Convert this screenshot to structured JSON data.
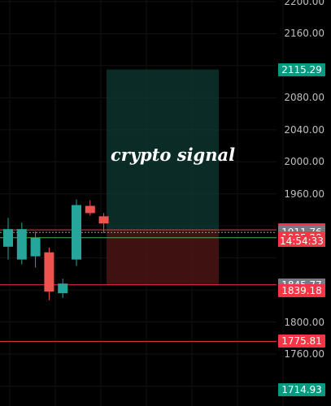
{
  "chart_data": {
    "type": "candlestick",
    "watermark": "crypto signal",
    "y_axis": {
      "ticks": [
        "2200.00",
        "2160.00",
        "2080.00",
        "2040.00",
        "2000.00",
        "1960.00",
        "1800.00",
        "1760.00"
      ]
    },
    "candles": [
      {
        "open": 1894,
        "high": 1930,
        "low": 1878,
        "close": 1916,
        "color": "#26a69a"
      },
      {
        "open": 1916,
        "high": 1924,
        "low": 1872,
        "close": 1878,
        "color": "#26a69a"
      },
      {
        "open": 1905,
        "high": 1913,
        "low": 1868,
        "close": 1882,
        "color": "#26a69a"
      },
      {
        "open": 1887,
        "high": 1893,
        "low": 1827,
        "close": 1838,
        "color": "#ef5350"
      },
      {
        "open": 1848,
        "high": 1854,
        "low": 1830,
        "close": 1836,
        "color": "#26a69a"
      },
      {
        "open": 1878,
        "high": 1953,
        "low": 1870,
        "close": 1946,
        "color": "#26a69a"
      },
      {
        "open": 1945,
        "high": 1952,
        "low": 1933,
        "close": 1936,
        "color": "#ef5350"
      },
      {
        "open": 1932,
        "high": 1936,
        "low": 1911,
        "close": 1923,
        "color": "#ef5350"
      }
    ],
    "position_box": {
      "target": 2115.29,
      "entry": 1914.94,
      "stop": 1846.43
    },
    "lines": [
      {
        "price": 1914.94,
        "color": "#f23645"
      },
      {
        "price": 1911.76,
        "color": "#9e9e9e"
      },
      {
        "price": 1905.29,
        "color": "#4caf50"
      },
      {
        "price": 1846.43,
        "color": "#f23645"
      },
      {
        "price": 1775.81,
        "color": "#f23645"
      }
    ]
  },
  "price_tags": [
    {
      "price": 2115.29,
      "label": "2115.29",
      "bg": "#089981",
      "fg": "#ffffff"
    },
    {
      "price": 1914.94,
      "label": "1914.94",
      "bg": "#f23645",
      "fg": "#ffffff"
    },
    {
      "price": 1911.76,
      "label": "1911.76",
      "bg": "#787b86",
      "fg": "#ffffff"
    },
    {
      "price": 1905.29,
      "label": "1905.29",
      "bg": "#f23645",
      "fg": "#ffffff"
    },
    {
      "price": 1846.43,
      "label": "1846.43",
      "bg": "#f23645",
      "fg": "#ffffff"
    },
    {
      "price": 1845.77,
      "label": "1845.77",
      "bg": "#787b86",
      "fg": "#ffffff"
    },
    {
      "price": 1839.18,
      "label": "1839.18",
      "bg": "#f23645",
      "fg": "#ffffff"
    },
    {
      "price": 1775.81,
      "label": "1775.81",
      "bg": "#f23645",
      "fg": "#ffffff"
    },
    {
      "price": 1714.93,
      "label": "1714.93",
      "bg": "#089981",
      "fg": "#ffffff"
    }
  ],
  "timer": "14:54:33"
}
